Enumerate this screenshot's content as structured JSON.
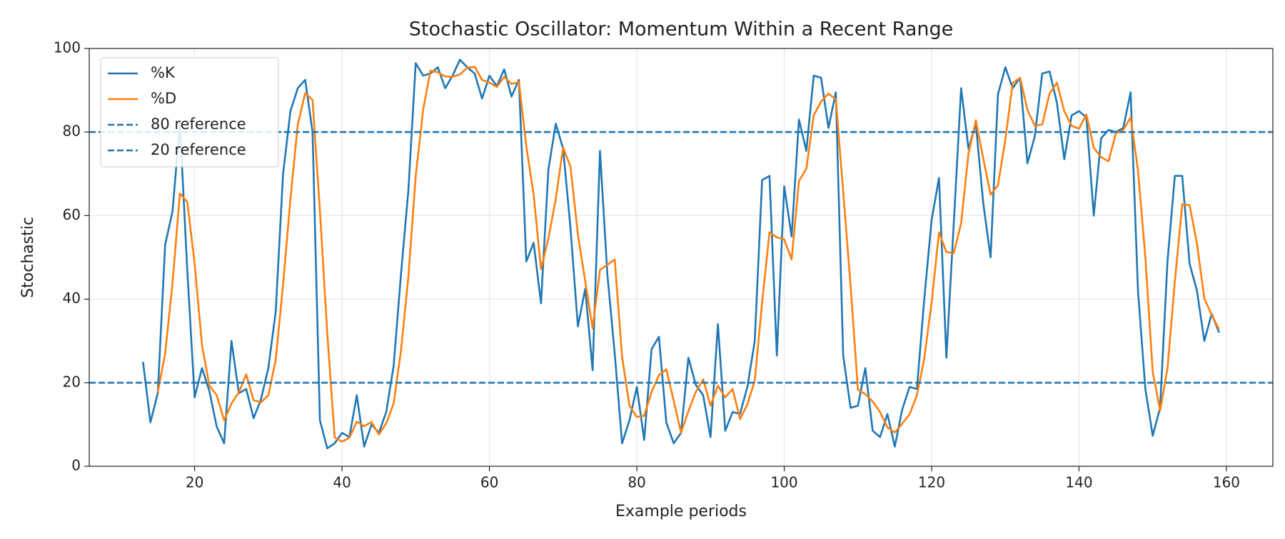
{
  "chart_data": {
    "type": "line",
    "title": "Stochastic Oscillator: Momentum Within a Recent Range",
    "xlabel": "Example periods",
    "ylabel": "Stochastic",
    "x": [
      13,
      14,
      15,
      16,
      17,
      18,
      19,
      20,
      21,
      22,
      23,
      24,
      25,
      26,
      27,
      28,
      29,
      30,
      31,
      32,
      33,
      34,
      35,
      36,
      37,
      38,
      39,
      40,
      41,
      42,
      43,
      44,
      45,
      46,
      47,
      48,
      49,
      50,
      51,
      52,
      53,
      54,
      55,
      56,
      57,
      58,
      59,
      60,
      61,
      62,
      63,
      64,
      65,
      66,
      67,
      68,
      69,
      70,
      71,
      72,
      73,
      74,
      75,
      76,
      77,
      78,
      79,
      80,
      81,
      82,
      83,
      84,
      85,
      86,
      87,
      88,
      89,
      90,
      91,
      92,
      93,
      94,
      95,
      96,
      97,
      98,
      99,
      100,
      101,
      102,
      103,
      104,
      105,
      106,
      107,
      108,
      109,
      110,
      111,
      112,
      113,
      114,
      115,
      116,
      117,
      118,
      119,
      120,
      121,
      122,
      123,
      124,
      125,
      126,
      127,
      128,
      129,
      130,
      131,
      132,
      133,
      134,
      135,
      136,
      137,
      138,
      139,
      140,
      141,
      142,
      143,
      144,
      145,
      146,
      147,
      148,
      149,
      150,
      151,
      152,
      153,
      154,
      155,
      156,
      157,
      158,
      159
    ],
    "series": [
      {
        "name": "%K",
        "color": "#1f77b4",
        "values": [
          25,
          10.5,
          17.5,
          53,
          61,
          82,
          47,
          16.5,
          23.5,
          18,
          9.5,
          5.5,
          30,
          17.5,
          18.5,
          11.5,
          16,
          23.5,
          37,
          70,
          85,
          90.5,
          92.5,
          80,
          11,
          4.3,
          5.5,
          8,
          7,
          17,
          4.7,
          10,
          8,
          13,
          24,
          46,
          66,
          96.5,
          93.5,
          94,
          95.5,
          90.5,
          93.5,
          97.3,
          95.5,
          94,
          88,
          93.5,
          91,
          95,
          88.5,
          92.5,
          49,
          53.5,
          39,
          71,
          82,
          76,
          57,
          33.5,
          42.5,
          23,
          75.5,
          46,
          27,
          5.5,
          11,
          19,
          6.3,
          28,
          31,
          10.5,
          5.5,
          8,
          26,
          19.5,
          17,
          7,
          34,
          8.5,
          13,
          12.5,
          19,
          30,
          68.5,
          69.5,
          26.5,
          67,
          55,
          83,
          75.5,
          93.5,
          93,
          81,
          89.5,
          26.5,
          14,
          14.5,
          23.5,
          8.5,
          7,
          12.5,
          4.7,
          13.5,
          19,
          18.5,
          40,
          59,
          69,
          26,
          58,
          90.5,
          76,
          82,
          63,
          50,
          89,
          95.5,
          90.5,
          93,
          72.5,
          79,
          94,
          94.5,
          87,
          73.5,
          84,
          85,
          83.5,
          60,
          78.5,
          80.5,
          80,
          81,
          89.5,
          42,
          18.5,
          7.3,
          14,
          49,
          69.5,
          69.5,
          48.5,
          42,
          30,
          36.5,
          32
        ]
      },
      {
        "name": "%D",
        "color": "#ff7f0e",
        "values": [
          null,
          null,
          17.7,
          27,
          43.8,
          65.3,
          63.3,
          48.5,
          29,
          19.3,
          17,
          11,
          15,
          17.7,
          22,
          15.8,
          15.3,
          17,
          25.5,
          43.5,
          64,
          81.8,
          89.3,
          87.7,
          61.2,
          31.8,
          6.9,
          5.9,
          6.8,
          10.7,
          9.6,
          10.6,
          7.6,
          10.3,
          15,
          27.7,
          45.3,
          69.5,
          85.3,
          94.7,
          94.3,
          93.3,
          93.2,
          93.8,
          95.4,
          95.6,
          92.5,
          91.8,
          90.8,
          93.2,
          91.5,
          92,
          76.7,
          65,
          47.2,
          54.5,
          64,
          76.3,
          71.7,
          55.5,
          44.3,
          33,
          47,
          48.2,
          49.5,
          26.2,
          14.5,
          11.8,
          12.1,
          17.8,
          21.8,
          23.2,
          15.7,
          8,
          13.2,
          17.8,
          20.8,
          14.5,
          19.3,
          16.5,
          18.5,
          11.3,
          14.8,
          20.5,
          39.2,
          56,
          54.8,
          54.3,
          49.5,
          68.3,
          71.2,
          84,
          87.3,
          89.2,
          87.8,
          65.7,
          43.3,
          18.3,
          17.3,
          15.5,
          13,
          9.3,
          8.1,
          10.2,
          12.4,
          17,
          25.8,
          39.2,
          56,
          51.3,
          51,
          58.2,
          74.8,
          82.8,
          73.7,
          65,
          67.3,
          78.2,
          91.7,
          93,
          85.3,
          81.5,
          81.8,
          89.2,
          91.8,
          85,
          81.5,
          80.8,
          84.2,
          76.2,
          74,
          73,
          79.7,
          80.5,
          83.5,
          70.8,
          50,
          22.6,
          13.3,
          23.4,
          44.2,
          62.7,
          62.5,
          53.3,
          40.2,
          36.2,
          32.8
        ]
      }
    ],
    "reference_lines": [
      {
        "name": "80 reference",
        "value": 80,
        "color": "#1f77b4",
        "dashed": true
      },
      {
        "name": "20 reference",
        "value": 20,
        "color": "#1f77b4",
        "dashed": true
      }
    ],
    "xlim": [
      5.7,
      166.3
    ],
    "xticks": [
      20,
      40,
      60,
      80,
      100,
      120,
      140,
      160
    ],
    "ylim": [
      0,
      100
    ],
    "yticks": [
      0,
      20,
      40,
      60,
      80,
      100
    ],
    "grid": true,
    "legend": "upper left"
  }
}
